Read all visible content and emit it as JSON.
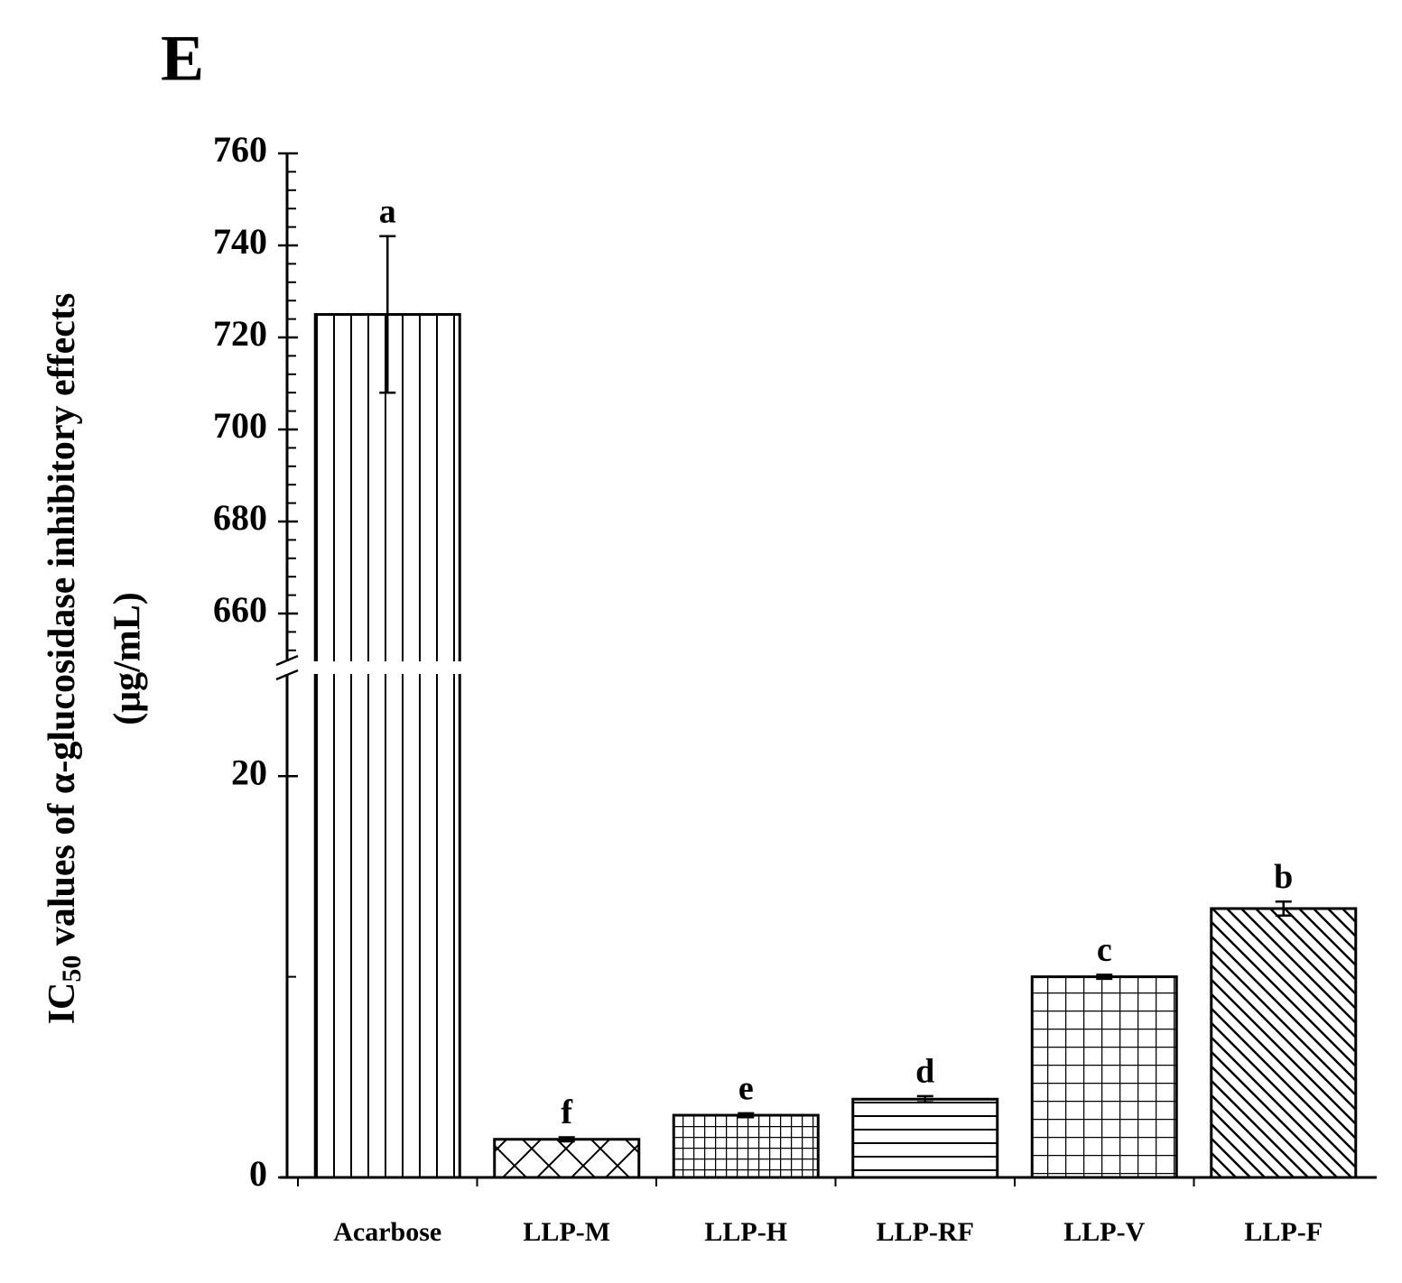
{
  "chart_data": {
    "type": "bar",
    "panel_label": "E",
    "ylabel": {
      "main": "IC",
      "sub": "50",
      "rest": " values of α-glucosidase inhibitory effects",
      "unit": "(μg/mL)"
    },
    "categories": [
      "Acarbose",
      "LLP-M",
      "LLP-H",
      "LLP-RF",
      "LLP-V",
      "LLP-F"
    ],
    "values": [
      725,
      1.9,
      3.1,
      3.9,
      10,
      13.4
    ],
    "errors": [
      17,
      0.1,
      0.1,
      0.15,
      0.1,
      0.35
    ],
    "letters": [
      "a",
      "f",
      "e",
      "d",
      "c",
      "b"
    ],
    "patterns": [
      "vertical",
      "cross",
      "grid-fine",
      "horizontal",
      "grid",
      "diagonal"
    ],
    "color": "#000000",
    "segments": [
      {
        "ylim": [
          650,
          760
        ],
        "yticks": [
          660,
          680,
          700,
          720,
          740,
          760
        ],
        "minor_divisions": 5
      },
      {
        "ylim": [
          0,
          25
        ],
        "yticks": [
          0,
          20
        ],
        "minor_divisions": 2
      }
    ],
    "axis_break": true
  }
}
